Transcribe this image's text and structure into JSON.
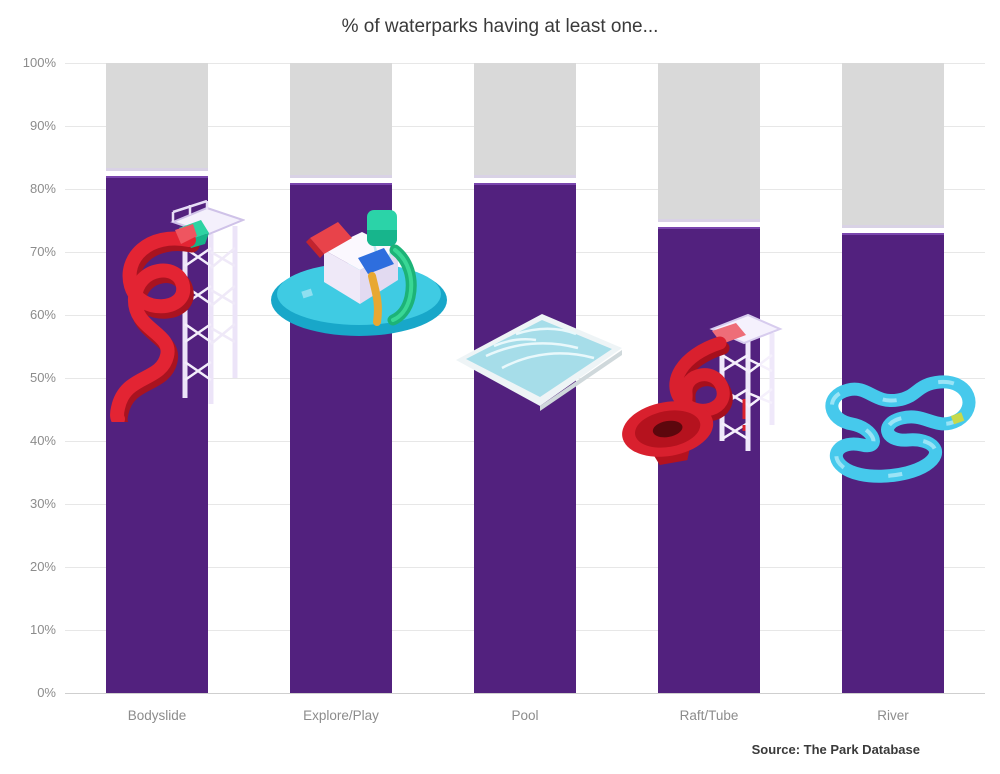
{
  "title": "% of waterparks having at least one...",
  "source": "Source: The Park Database",
  "chart_data": {
    "type": "bar",
    "title": "% of waterparks having at least one...",
    "xlabel": "",
    "ylabel": "",
    "categories": [
      "Bodyslide",
      "Explore/Play",
      "Pool",
      "Raft/Tube",
      "River"
    ],
    "values": [
      82,
      81,
      81,
      74,
      73
    ],
    "stacked_remainder_to": 100,
    "ylim": [
      0,
      100
    ],
    "ytick_step": 10,
    "ytick_labels": [
      "0%",
      "10%",
      "20%",
      "30%",
      "40%",
      "50%",
      "60%",
      "70%",
      "80%",
      "90%",
      "100%"
    ],
    "grid": true,
    "legend": "none",
    "icons": [
      "bodyslide-icon",
      "explore-play-icon",
      "pool-icon",
      "raft-tube-icon",
      "river-icon"
    ],
    "colors": {
      "bar": "#52217e",
      "bar_top_edge": "#7a46ae",
      "bar_gap_edge": "#d9d2e6",
      "remainder": "#d9d9d9",
      "gridline": "#e7e7e7",
      "axis_line": "#cfcfcf",
      "tick_text": "#8c8c8c",
      "title_text": "#3a3a3a",
      "source_text": "#3a3a3a",
      "slide_red": "#e32433",
      "funnel_red": "#d9202e",
      "river_cyan": "#46c9ec",
      "pool_blue": "#a6dde9",
      "bucket_teal": "#2bd3a8",
      "panel_blue": "#2e6ede",
      "base_teal": "#3fcbe3"
    }
  }
}
